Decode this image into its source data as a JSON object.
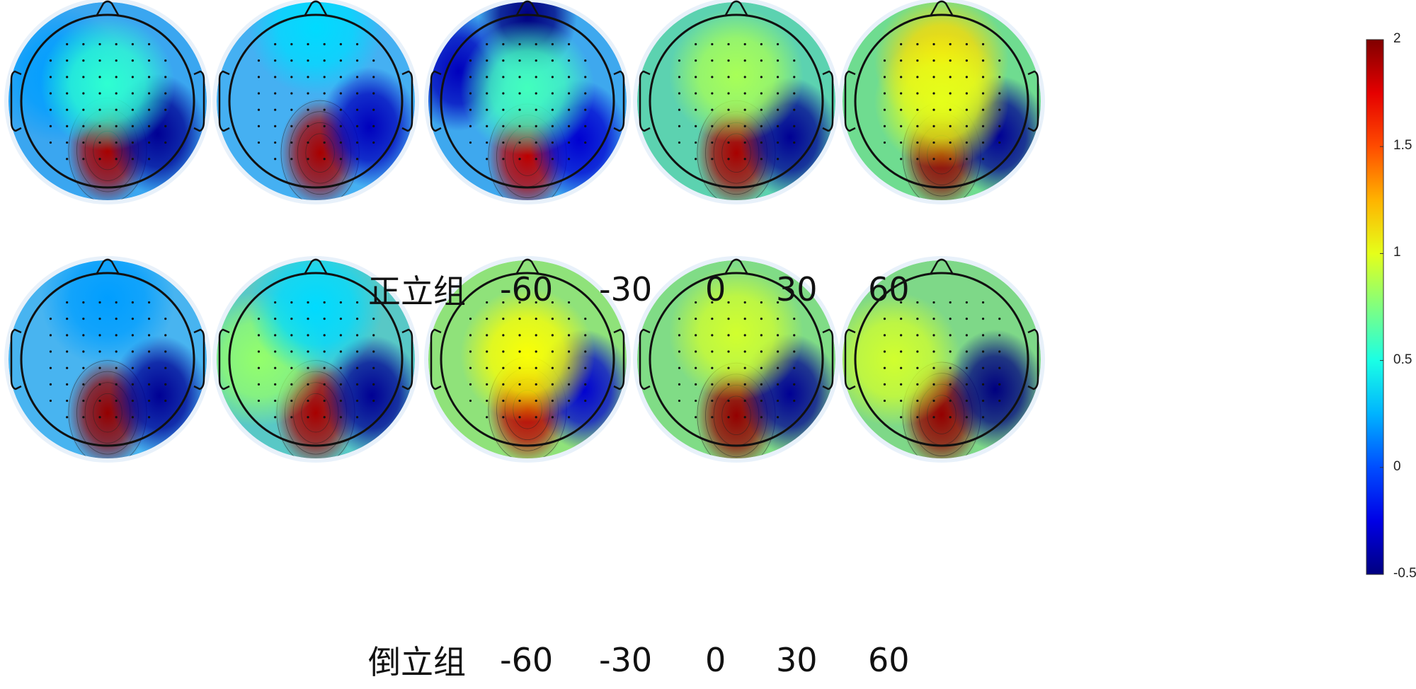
{
  "chart_data": {
    "type": "heatmap",
    "rows": [
      {
        "group": "正立组",
        "labels": [
          "-60",
          "-30",
          "0",
          "30",
          "60"
        ],
        "maps": [
          {
            "label": "-60",
            "bg": "#3aa6f0",
            "blobs": [
              {
                "x": 0.0,
                "y": 0.57,
                "v": 1.9
              },
              {
                "x": 0.58,
                "y": 0.38,
                "v": -0.45
              },
              {
                "x": -0.55,
                "y": -0.3,
                "v": 0.2
              },
              {
                "x": 0.0,
                "y": -0.2,
                "v": 0.55
              }
            ]
          },
          {
            "label": "-30",
            "bg": "#45b0f2",
            "blobs": [
              {
                "x": 0.05,
                "y": 0.6,
                "v": 1.9
              },
              {
                "x": 0.62,
                "y": 0.3,
                "v": -0.35
              },
              {
                "x": 0.0,
                "y": -0.85,
                "v": 0.35
              }
            ]
          },
          {
            "label": "0",
            "bg": "#3ea8ee",
            "blobs": [
              {
                "x": 0.0,
                "y": 0.64,
                "v": 1.85
              },
              {
                "x": 0.0,
                "y": -1.0,
                "v": -0.55
              },
              {
                "x": -0.8,
                "y": -0.35,
                "v": -0.35
              },
              {
                "x": 0.6,
                "y": 0.45,
                "v": -0.3
              },
              {
                "x": 0.0,
                "y": -0.15,
                "v": 0.6
              }
            ]
          },
          {
            "label": "30",
            "bg": "#5cd2b0",
            "blobs": [
              {
                "x": 0.0,
                "y": 0.6,
                "v": 1.9
              },
              {
                "x": 0.62,
                "y": 0.42,
                "v": -0.45
              },
              {
                "x": 0.0,
                "y": -0.3,
                "v": 0.85
              }
            ]
          },
          {
            "label": "60",
            "bg": "#6fdc90",
            "blobs": [
              {
                "x": 0.0,
                "y": 0.62,
                "v": 1.95
              },
              {
                "x": 0.66,
                "y": 0.4,
                "v": -0.45
              },
              {
                "x": 0.0,
                "y": -0.45,
                "v": 1.15
              },
              {
                "x": 0.0,
                "y": 0.0,
                "v": 1.0
              }
            ]
          }
        ]
      },
      {
        "group": "倒立组",
        "labels": [
          "-60",
          "-30",
          "0",
          "30",
          "60"
        ],
        "maps": [
          {
            "label": "-60",
            "bg": "#48b4f0",
            "blobs": [
              {
                "x": 0.0,
                "y": 0.62,
                "v": 1.95
              },
              {
                "x": 0.6,
                "y": 0.42,
                "v": -0.45
              },
              {
                "x": 0.0,
                "y": -0.7,
                "v": 0.2
              }
            ]
          },
          {
            "label": "-30",
            "bg": "#58c8c6",
            "blobs": [
              {
                "x": 0.0,
                "y": 0.62,
                "v": 1.9
              },
              {
                "x": 0.65,
                "y": 0.42,
                "v": -0.45
              },
              {
                "x": -0.65,
                "y": 0.0,
                "v": 0.8
              },
              {
                "x": 0.0,
                "y": -0.6,
                "v": 0.35
              }
            ]
          },
          {
            "label": "0",
            "bg": "#8fe27a",
            "blobs": [
              {
                "x": 0.0,
                "y": 0.58,
                "v": 1.85
              },
              {
                "x": 0.65,
                "y": 0.35,
                "v": -0.3
              },
              {
                "x": 0.0,
                "y": -0.05,
                "v": 1.05
              }
            ]
          },
          {
            "label": "30",
            "bg": "#80dc86",
            "blobs": [
              {
                "x": 0.0,
                "y": 0.65,
                "v": 1.95
              },
              {
                "x": 0.62,
                "y": 0.4,
                "v": -0.45
              },
              {
                "x": 0.0,
                "y": -0.3,
                "v": 0.95
              }
            ]
          },
          {
            "label": "60",
            "bg": "#7ed888",
            "blobs": [
              {
                "x": 0.0,
                "y": 0.64,
                "v": 1.95
              },
              {
                "x": 0.62,
                "y": 0.35,
                "v": -0.5
              },
              {
                "x": -0.55,
                "y": 0.0,
                "v": 0.95
              }
            ]
          }
        ]
      }
    ],
    "colorbar": {
      "min": -0.5,
      "max": 2,
      "ticks": [
        2,
        1.5,
        1,
        0.5,
        0,
        -0.5
      ],
      "tick_labels": [
        "2",
        "1.5",
        "1",
        "0.5",
        "0",
        "-0.5"
      ],
      "colormap": "jet"
    }
  }
}
